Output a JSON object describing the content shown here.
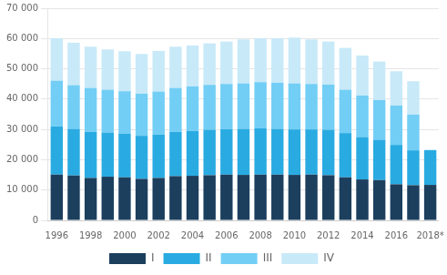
{
  "chart_data": {
    "type": "bar",
    "stacked": true,
    "categories": [
      "1996",
      null,
      "1998",
      null,
      "2000",
      null,
      "2002",
      null,
      "2004",
      null,
      "2006",
      null,
      "2008",
      null,
      "2010",
      null,
      "2012",
      null,
      "2014",
      null,
      "2016",
      null,
      "2018*"
    ],
    "series": [
      {
        "name": "I",
        "color": "#1c3f5e",
        "values": [
          15100,
          14800,
          14000,
          14400,
          14200,
          13700,
          14000,
          14600,
          14700,
          14900,
          15100,
          15000,
          15100,
          15100,
          15000,
          15100,
          14900,
          14200,
          13500,
          13300,
          11900,
          11600,
          11700
        ]
      },
      {
        "name": "II",
        "color": "#29abe2",
        "values": [
          15900,
          15400,
          15200,
          14600,
          14400,
          14200,
          14300,
          14600,
          14800,
          15000,
          15000,
          15200,
          15300,
          15100,
          15000,
          14900,
          15000,
          14600,
          14000,
          13300,
          13000,
          11500,
          11500
        ]
      },
      {
        "name": "III",
        "color": "#72cef5",
        "values": [
          15100,
          14400,
          14500,
          14100,
          14000,
          13900,
          14200,
          14500,
          14700,
          14800,
          14900,
          15000,
          15200,
          15200,
          15200,
          15000,
          14900,
          14300,
          13700,
          13100,
          13000,
          11800,
          0
        ]
      },
      {
        "name": "IV",
        "color": "#c8e9f8",
        "values": [
          14000,
          14000,
          13600,
          13300,
          13200,
          13100,
          13400,
          13600,
          13500,
          13700,
          14000,
          14500,
          14500,
          14700,
          15100,
          14700,
          14200,
          13800,
          13200,
          12700,
          11300,
          11000,
          0
        ]
      }
    ],
    "ylim": [
      0,
      70000
    ],
    "yticks": [
      0,
      {
        "value": 10000,
        "label": "10 000"
      },
      {
        "value": 20000,
        "label": "20 000"
      },
      {
        "value": 30000,
        "label": "30 000"
      },
      {
        "value": 40000,
        "label": "40 000"
      },
      {
        "value": 50000,
        "label": "50 000"
      },
      {
        "value": 60000,
        "label": "60 000"
      },
      {
        "value": 70000,
        "label": "70 000"
      }
    ],
    "grid": "y",
    "legend": "bottom"
  }
}
